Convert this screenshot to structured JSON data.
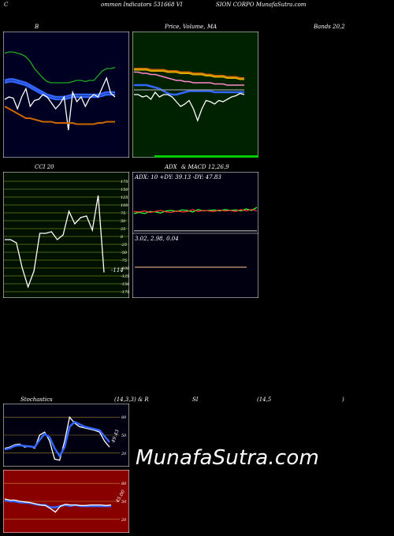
{
  "header": {
    "parts": [
      "C",
      "ommon  Indicators 531668  VI",
      "SION  CORPO MunafaSutra.com"
    ]
  },
  "watermark": "MunafaSutra.com",
  "colors": {
    "bb_bg": "#000022",
    "price_bg": "#002200",
    "cci_bg": "#001100",
    "adx_bg": "#000011",
    "stoch_bg": "#000011",
    "rsi_bg": "#880000",
    "white": "#ffffff",
    "green": "#22aa22",
    "blue": "#3399ff",
    "orange": "#cc6600",
    "bright_green": "#33ff33",
    "grey": "#aaaaaa",
    "red": "#ff2222"
  },
  "chart_data": [
    {
      "name_key": "bollinger",
      "type": "line",
      "title_parts": [
        "B",
        "Bands 20,2"
      ],
      "ylim": [
        0,
        100
      ],
      "series": [
        {
          "color": "green",
          "values": [
            85,
            86,
            86,
            85,
            84,
            82,
            78,
            72,
            68,
            64,
            61,
            60,
            60,
            60,
            60,
            60,
            61,
            62,
            62,
            61,
            62,
            62,
            66,
            70,
            72,
            72,
            73
          ]
        },
        {
          "color": "blue",
          "values": [
            62,
            63,
            63,
            62,
            61,
            60,
            58,
            56,
            54,
            52,
            50,
            49,
            48,
            48,
            48,
            49,
            50,
            50,
            50,
            50,
            50,
            50,
            50,
            51,
            52,
            52,
            52
          ]
        },
        {
          "color": "blue",
          "values": [
            60,
            61,
            61,
            60,
            59,
            58,
            56,
            54,
            52,
            50,
            48,
            47,
            46,
            46,
            46,
            47,
            48,
            48,
            48,
            48,
            48,
            48,
            48,
            49,
            50,
            50,
            50
          ]
        },
        {
          "color": "white",
          "values": [
            46,
            48,
            47,
            38,
            48,
            55,
            40,
            45,
            46,
            50,
            48,
            43,
            38,
            42,
            48,
            20,
            52,
            44,
            48,
            40,
            47,
            50,
            48,
            56,
            64,
            51,
            48
          ]
        },
        {
          "color": "orange",
          "values": [
            40,
            38,
            36,
            34,
            32,
            30,
            30,
            29,
            28,
            27,
            27,
            27,
            26,
            26,
            26,
            26,
            26,
            25,
            25,
            25,
            25,
            25,
            26,
            26,
            27,
            27,
            27
          ]
        }
      ]
    },
    {
      "name_key": "price_ma",
      "type": "line",
      "title_parts": [
        "Price,",
        "Volume,",
        "MA"
      ],
      "ylim": [
        0,
        100
      ],
      "series": [
        {
          "color": "orange",
          "values": [
            72,
            72,
            72,
            72,
            71,
            71,
            71,
            71,
            70,
            70,
            70,
            69,
            69,
            69,
            68,
            68,
            68,
            67,
            67,
            66,
            66,
            66,
            65,
            65,
            65,
            64,
            64
          ]
        },
        {
          "color": "yellow",
          "values": [
            71,
            71,
            71,
            71,
            70,
            70,
            70,
            70,
            69,
            69,
            69,
            68,
            68,
            68,
            67,
            67,
            67,
            66,
            66,
            65,
            65,
            65,
            64,
            64,
            64,
            63,
            63
          ]
        },
        {
          "color": "pink",
          "values": [
            69,
            69,
            68,
            68,
            67,
            67,
            66,
            65,
            64,
            63,
            62,
            62,
            61,
            61,
            60,
            60,
            60,
            60,
            60,
            59,
            59,
            59,
            58,
            58,
            58,
            58,
            58
          ]
        },
        {
          "color": "blue",
          "values": [
            58,
            58,
            58,
            58,
            57,
            56,
            55,
            53,
            51,
            50,
            50,
            51,
            52,
            53,
            53,
            53,
            53,
            53,
            53,
            52,
            52,
            52,
            52,
            52,
            52,
            52,
            52
          ]
        },
        {
          "color": "white",
          "values": [
            50,
            50,
            48,
            49,
            46,
            52,
            48,
            50,
            50,
            48,
            44,
            40,
            42,
            45,
            38,
            28,
            38,
            45,
            44,
            42,
            45,
            44,
            46,
            48,
            49,
            51,
            50
          ]
        },
        {
          "color": "grey",
          "values": [
            54,
            54,
            54,
            54,
            54,
            54,
            54,
            54,
            54,
            54,
            54,
            54,
            54,
            54,
            54,
            54,
            54,
            54,
            54,
            54,
            54,
            54,
            54,
            54,
            54,
            54,
            54
          ]
        }
      ]
    },
    {
      "name_key": "cci",
      "type": "line",
      "title": "CCI 20",
      "ylim": [
        -175,
        175
      ],
      "yticks": [
        175,
        150,
        125,
        100,
        75,
        50,
        25,
        0,
        -25,
        -50,
        -75,
        -100,
        -125,
        -150,
        -175
      ],
      "last_value_label": "-114",
      "series": [
        {
          "color": "white",
          "values": [
            -10,
            -10,
            -20,
            -100,
            -160,
            -110,
            10,
            10,
            15,
            -10,
            5,
            80,
            40,
            60,
            65,
            20,
            130,
            -114
          ]
        }
      ]
    },
    {
      "name_key": "adx",
      "type": "line",
      "title_parts": [
        "ADX",
        "& MACD 12,26,9"
      ],
      "adx_label": "ADX: 10  +DY: 39.13 -DY: 47.83",
      "macd_label": "3.02,  2.98,  0.04",
      "series": [
        {
          "color": "bright_green",
          "values": [
            40,
            42,
            40,
            44,
            43,
            41,
            45,
            46,
            44,
            47,
            46,
            43,
            48,
            45,
            46,
            47,
            45,
            48,
            46,
            47,
            45,
            49,
            46,
            52
          ]
        },
        {
          "color": "red",
          "values": [
            44,
            43,
            45,
            42,
            44,
            46,
            43,
            42,
            45,
            43,
            44,
            48,
            44,
            46,
            45,
            44,
            47,
            45,
            46,
            44,
            48,
            45,
            48,
            45
          ]
        },
        {
          "color": "grey",
          "values": [
            5,
            5,
            5,
            5,
            5,
            5,
            5,
            5,
            5,
            5,
            5,
            5,
            5,
            5,
            5,
            5,
            5,
            5,
            5,
            5,
            5,
            5,
            5,
            5
          ]
        }
      ]
    },
    {
      "name_key": "stochastics",
      "type": "line",
      "title_parts": [
        "Stochastics",
        "(14,3,3) & R",
        "SI",
        "(14,5",
        ")"
      ],
      "ylim": [
        0,
        100
      ],
      "yticks": [
        80,
        50,
        20
      ],
      "value_label": "49.43",
      "series": [
        {
          "color": "white",
          "values": [
            28,
            30,
            34,
            35,
            30,
            32,
            28,
            50,
            55,
            40,
            10,
            8,
            40,
            80,
            70,
            64,
            62,
            60,
            58,
            55,
            40,
            30
          ]
        },
        {
          "color": "blue",
          "values": [
            26,
            28,
            32,
            33,
            32,
            31,
            30,
            42,
            52,
            46,
            28,
            15,
            30,
            64,
            72,
            68,
            64,
            62,
            60,
            58,
            48,
            38
          ]
        }
      ]
    },
    {
      "name_key": "rsi",
      "type": "line",
      "ylim": [
        0,
        100
      ],
      "yticks": [
        80,
        50,
        20
      ],
      "value_label": "45.00",
      "series": [
        {
          "color": "blue",
          "values": [
            52,
            50,
            50,
            48,
            48,
            47,
            45,
            44,
            44,
            40,
            40,
            42,
            44,
            42,
            44,
            42,
            42,
            42,
            42,
            42,
            42,
            42
          ]
        },
        {
          "color": "white",
          "values": [
            54,
            52,
            52,
            50,
            49,
            48,
            46,
            44,
            43,
            38,
            32,
            42,
            45,
            44,
            44,
            43,
            43,
            44,
            44,
            44,
            43,
            44
          ]
        }
      ]
    }
  ]
}
